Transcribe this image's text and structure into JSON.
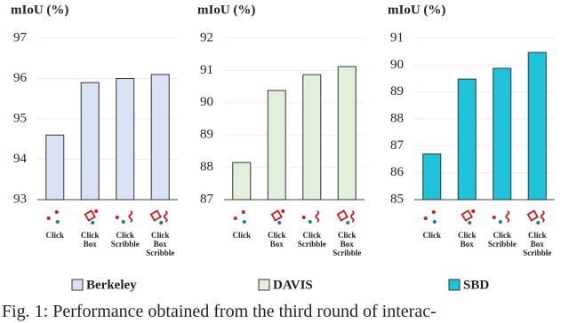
{
  "chart_data": [
    {
      "type": "bar",
      "ylabel": "mIoU (%)",
      "categories": [
        "Click",
        "Click\nBox",
        "Click\nScribble",
        "Click\nBox\nScribble"
      ],
      "series": [
        {
          "name": "Berkeley",
          "color": "#dae3f3",
          "values": [
            94.6,
            95.9,
            96.0,
            96.1
          ]
        }
      ],
      "ylim": [
        93,
        97
      ],
      "yticks": [
        93,
        94,
        95,
        96,
        97
      ],
      "grid": false
    },
    {
      "type": "bar",
      "ylabel": "mIoU (%)",
      "categories": [
        "Click",
        "Click\nBox",
        "Click\nScribble",
        "Click\nBox\nScribble"
      ],
      "series": [
        {
          "name": "DAVIS",
          "color": "#e2efda",
          "values": [
            88.15,
            90.38,
            90.87,
            91.12
          ]
        }
      ],
      "ylim": [
        87,
        92
      ],
      "yticks": [
        87,
        88,
        89,
        90,
        91,
        92
      ],
      "grid": false
    },
    {
      "type": "bar",
      "ylabel": "mIoU (%)",
      "categories": [
        "Click",
        "Click\nBox",
        "Click\nScribble",
        "Click\nBox\nScribble"
      ],
      "series": [
        {
          "name": "SBD",
          "color": "#1ec3d9",
          "values": [
            86.7,
            89.48,
            89.88,
            90.47
          ]
        }
      ],
      "ylim": [
        85,
        91
      ],
      "yticks": [
        85,
        86,
        87,
        88,
        89,
        90,
        91
      ],
      "grid": false
    }
  ],
  "caption": "Fig. 1: Performance obtained from the third round of interac-"
}
